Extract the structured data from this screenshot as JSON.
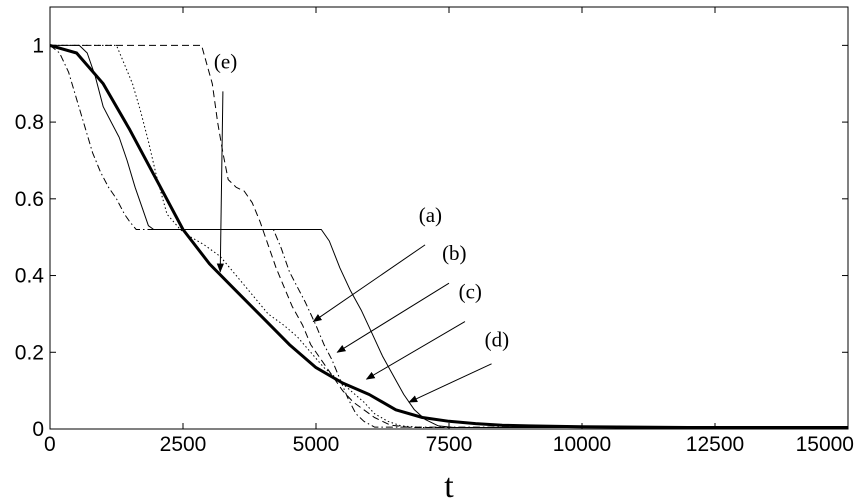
{
  "chart_data": {
    "type": "line",
    "title": "",
    "xlabel": "t",
    "ylabel": "",
    "xlim": [
      0,
      15000
    ],
    "ylim": [
      0,
      1.1
    ],
    "grid": false,
    "legend": "none",
    "x_ticks": [
      {
        "value": 0,
        "label": "0"
      },
      {
        "value": 2500,
        "label": "2500"
      },
      {
        "value": 5000,
        "label": "5000"
      },
      {
        "value": 7500,
        "label": "7500"
      },
      {
        "value": 10000,
        "label": "10000"
      },
      {
        "value": 12500,
        "label": "12500"
      },
      {
        "value": 15000,
        "label": "15000"
      }
    ],
    "y_ticks": [
      {
        "value": 0,
        "label": "0"
      },
      {
        "value": 0.2,
        "label": "0.2"
      },
      {
        "value": 0.4,
        "label": "0.4"
      },
      {
        "value": 0.6,
        "label": "0.6"
      },
      {
        "value": 0.8,
        "label": "0.8"
      },
      {
        "value": 1,
        "label": "1"
      }
    ],
    "series": [
      {
        "style": "dash-dot",
        "stroke_width": 1,
        "points": [
          [
            0,
            1
          ],
          [
            180,
            0.98
          ],
          [
            350,
            0.93
          ],
          [
            500,
            0.86
          ],
          [
            650,
            0.79
          ],
          [
            800,
            0.72
          ],
          [
            950,
            0.67
          ],
          [
            1100,
            0.63
          ],
          [
            1250,
            0.6
          ],
          [
            1400,
            0.56
          ],
          [
            1500,
            0.54
          ],
          [
            1620,
            0.52
          ],
          [
            4200,
            0.52
          ],
          [
            4350,
            0.47
          ],
          [
            4500,
            0.41
          ],
          [
            4650,
            0.37
          ],
          [
            4800,
            0.33
          ],
          [
            5000,
            0.27
          ],
          [
            5150,
            0.22
          ],
          [
            5300,
            0.18
          ],
          [
            5450,
            0.13
          ],
          [
            5600,
            0.08
          ],
          [
            5750,
            0.04
          ],
          [
            5900,
            0.02
          ],
          [
            6100,
            0.005
          ],
          [
            15000,
            0.005
          ]
        ]
      },
      {
        "style": "solid",
        "stroke_width": 1,
        "points": [
          [
            0,
            1
          ],
          [
            550,
            1
          ],
          [
            700,
            0.98
          ],
          [
            850,
            0.92
          ],
          [
            1000,
            0.84
          ],
          [
            1150,
            0.8
          ],
          [
            1300,
            0.76
          ],
          [
            1450,
            0.7
          ],
          [
            1600,
            0.63
          ],
          [
            1750,
            0.57
          ],
          [
            1850,
            0.53
          ],
          [
            1950,
            0.52
          ],
          [
            5100,
            0.52
          ],
          [
            5250,
            0.49
          ],
          [
            5450,
            0.42
          ],
          [
            5650,
            0.36
          ],
          [
            5850,
            0.31
          ],
          [
            6050,
            0.25
          ],
          [
            6250,
            0.19
          ],
          [
            6450,
            0.14
          ],
          [
            6650,
            0.09
          ],
          [
            6850,
            0.05
          ],
          [
            7050,
            0.025
          ],
          [
            7300,
            0.008
          ],
          [
            7600,
            0.004
          ],
          [
            15000,
            0.004
          ]
        ]
      },
      {
        "style": "dotted",
        "stroke_width": 1,
        "points": [
          [
            0,
            1
          ],
          [
            1250,
            1
          ],
          [
            1400,
            0.95
          ],
          [
            1550,
            0.9
          ],
          [
            1700,
            0.83
          ],
          [
            1850,
            0.75
          ],
          [
            2000,
            0.66
          ],
          [
            2200,
            0.56
          ],
          [
            2450,
            0.52
          ],
          [
            2650,
            0.5
          ],
          [
            2900,
            0.48
          ],
          [
            3200,
            0.45
          ],
          [
            3500,
            0.4
          ],
          [
            3800,
            0.35
          ],
          [
            4100,
            0.3
          ],
          [
            4400,
            0.27
          ],
          [
            4650,
            0.24
          ],
          [
            4900,
            0.2
          ],
          [
            5150,
            0.16
          ],
          [
            5400,
            0.13
          ],
          [
            5650,
            0.1
          ],
          [
            5900,
            0.07
          ],
          [
            6100,
            0.04
          ],
          [
            6350,
            0.02
          ],
          [
            6600,
            0.008
          ],
          [
            7000,
            0.004
          ],
          [
            15000,
            0.004
          ]
        ]
      },
      {
        "style": "dashed",
        "stroke_width": 1,
        "points": [
          [
            0,
            1
          ],
          [
            2850,
            1
          ],
          [
            2950,
            0.95
          ],
          [
            3050,
            0.9
          ],
          [
            3150,
            0.8
          ],
          [
            3250,
            0.72
          ],
          [
            3350,
            0.65
          ],
          [
            3500,
            0.63
          ],
          [
            3650,
            0.62
          ],
          [
            3800,
            0.59
          ],
          [
            3950,
            0.54
          ],
          [
            4100,
            0.48
          ],
          [
            4250,
            0.42
          ],
          [
            4400,
            0.37
          ],
          [
            4550,
            0.32
          ],
          [
            4750,
            0.27
          ],
          [
            4900,
            0.22
          ],
          [
            5100,
            0.18
          ],
          [
            5300,
            0.14
          ],
          [
            5500,
            0.1
          ],
          [
            5700,
            0.07
          ],
          [
            5900,
            0.05
          ],
          [
            6100,
            0.03
          ],
          [
            6400,
            0.01
          ],
          [
            6800,
            0.004
          ],
          [
            15000,
            0.004
          ]
        ]
      },
      {
        "style": "solid",
        "stroke_width": 3,
        "points": [
          [
            0,
            1
          ],
          [
            500,
            0.98
          ],
          [
            1000,
            0.9
          ],
          [
            1500,
            0.78
          ],
          [
            2000,
            0.65
          ],
          [
            2500,
            0.52
          ],
          [
            3000,
            0.43
          ],
          [
            3500,
            0.36
          ],
          [
            4000,
            0.29
          ],
          [
            4500,
            0.22
          ],
          [
            5000,
            0.16
          ],
          [
            5500,
            0.12
          ],
          [
            6000,
            0.09
          ],
          [
            6500,
            0.05
          ],
          [
            7000,
            0.03
          ],
          [
            7500,
            0.02
          ],
          [
            8000,
            0.014
          ],
          [
            8500,
            0.01
          ],
          [
            9000,
            0.008
          ],
          [
            10000,
            0.006
          ],
          [
            11000,
            0.005
          ],
          [
            12000,
            0.004
          ],
          [
            13000,
            0.004
          ],
          [
            14000,
            0.004
          ],
          [
            15000,
            0.004
          ]
        ]
      }
    ],
    "annotations": [
      {
        "label": "(e)",
        "text_x": 3300,
        "text_y": 0.94,
        "line_start_x": 3250,
        "line_start_y": 0.88,
        "arrow_x": 3200,
        "arrow_y": 0.41
      },
      {
        "label": "(a)",
        "text_x": 7150,
        "text_y": 0.54,
        "line_start_x": 7050,
        "line_start_y": 0.48,
        "arrow_x": 4950,
        "arrow_y": 0.28
      },
      {
        "label": "(b)",
        "text_x": 7600,
        "text_y": 0.44,
        "line_start_x": 7500,
        "line_start_y": 0.38,
        "arrow_x": 5400,
        "arrow_y": 0.2
      },
      {
        "label": "(c)",
        "text_x": 7900,
        "text_y": 0.34,
        "line_start_x": 7800,
        "line_start_y": 0.28,
        "arrow_x": 5950,
        "arrow_y": 0.13
      },
      {
        "label": "(d)",
        "text_x": 8400,
        "text_y": 0.215,
        "line_start_x": 8300,
        "line_start_y": 0.17,
        "arrow_x": 6750,
        "arrow_y": 0.07
      }
    ]
  }
}
